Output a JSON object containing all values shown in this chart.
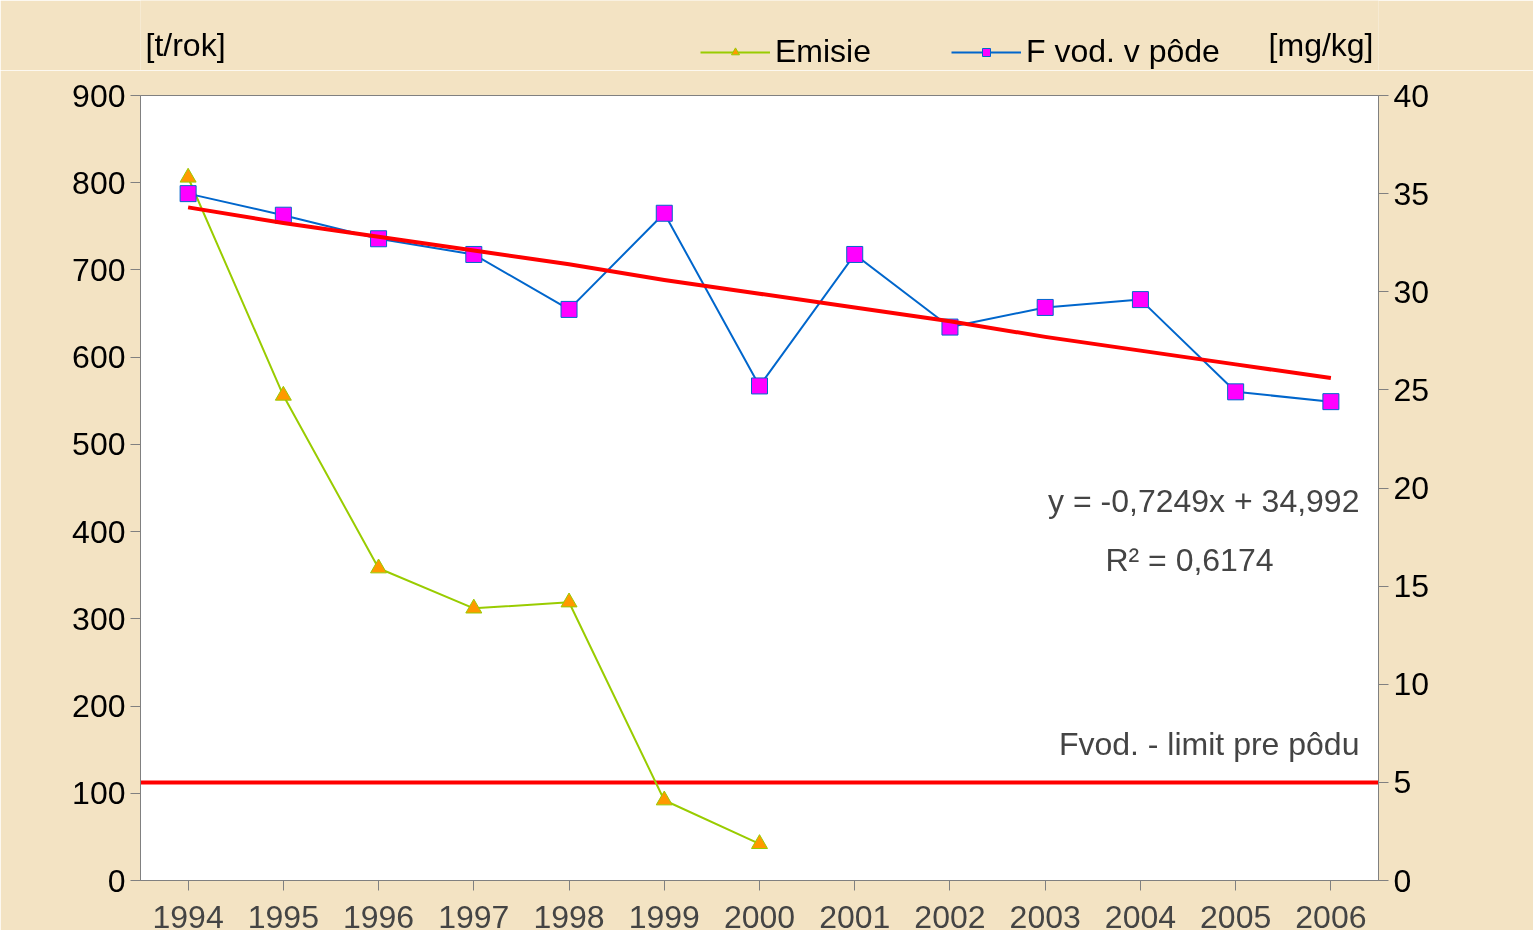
{
  "chart_data": {
    "type": "line",
    "ylabel": "[t/rok]",
    "y2label": "[mg/kg]",
    "categories": [
      "1994",
      "1995",
      "1996",
      "1997",
      "1998",
      "1999",
      "2000",
      "2001",
      "2002",
      "2003",
      "2004",
      "2005",
      "2006"
    ],
    "series": [
      {
        "name": "Emisie",
        "color": "#99cc00",
        "marker": "triangle",
        "values": [
          806,
          556,
          358,
          312,
          319,
          92,
          42,
          null,
          null,
          null,
          null,
          null,
          null
        ]
      },
      {
        "name": "F vod. v pôde",
        "color": "#0066cc",
        "marker": "square",
        "axis": "y2",
        "values": [
          35.0,
          33.9,
          32.7,
          31.9,
          29.1,
          34.0,
          25.2,
          31.9,
          28.2,
          29.2,
          29.6,
          24.9,
          24.4
        ]
      },
      {
        "color": "#ff0000",
        "marker": "none",
        "axis": "y2",
        "values": [
          34.3,
          33.5,
          32.8,
          32.1,
          31.4,
          30.6,
          29.9,
          29.2,
          28.5,
          27.7,
          27.0,
          26.3,
          25.6
        ]
      }
    ],
    "ylim": [
      0,
      900
    ],
    "yticks": [
      0,
      100,
      200,
      300,
      400,
      500,
      600,
      700,
      800,
      900
    ],
    "y2lim": [
      0,
      40
    ],
    "y2ticks": [
      0,
      5,
      10,
      15,
      20,
      25,
      30,
      35,
      40
    ],
    "ref_lines": [
      {
        "axis": "y2",
        "value": 5,
        "label": "Fvod. - limit pre pôdu",
        "color": "#ff0000"
      }
    ],
    "annotations": [
      "y = -0,7249x + 34,992",
      "R² = 0,6174"
    ],
    "grid": false,
    "legend": "top right"
  }
}
